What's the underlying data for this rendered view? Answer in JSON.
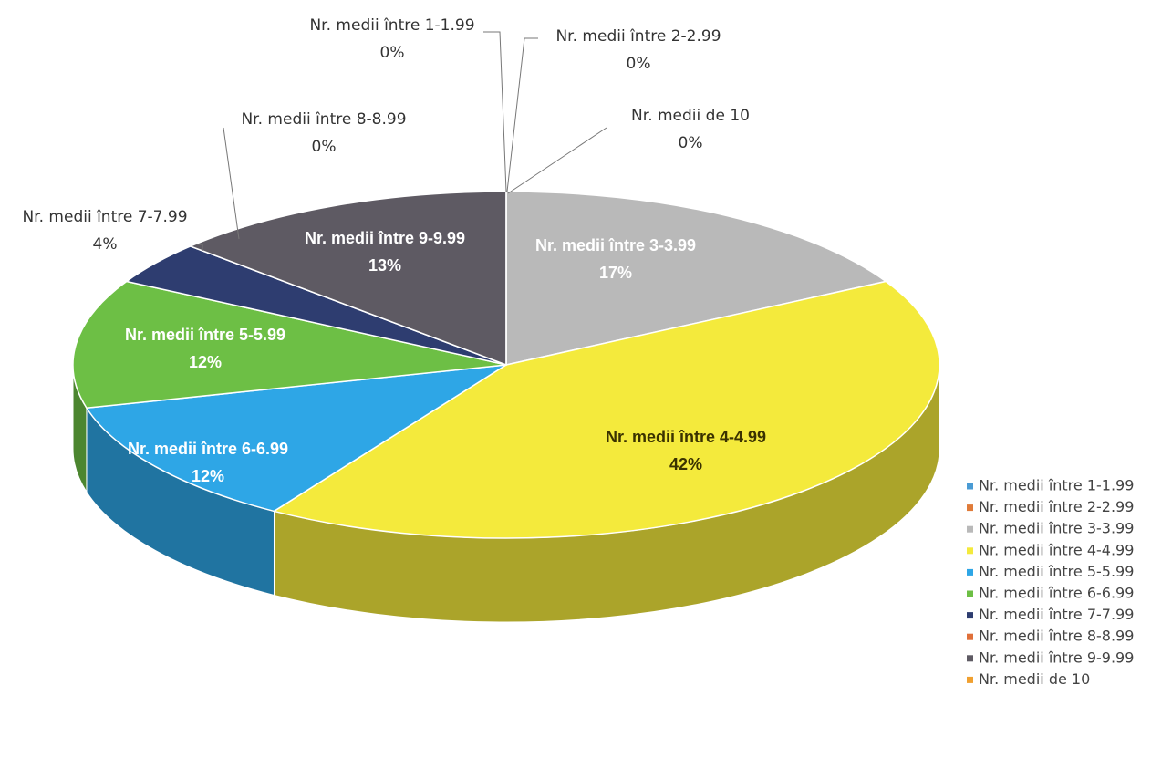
{
  "chart_data": {
    "type": "pie",
    "three_d": true,
    "categories": [
      "Nr. medii între 1-1.99",
      "Nr. medii între 2-2.99",
      "Nr. medii între 3-3.99",
      "Nr. medii între 4-4.99",
      "Nr. medii între 5-5.99",
      "Nr. medii între 6-6.99",
      "Nr. medii între 7-7.99",
      "Nr. medii între 8-8.99",
      "Nr. medii între 9-9.99",
      "Nr. medii de 10"
    ],
    "values": [
      0,
      0,
      17,
      42,
      12,
      12,
      4,
      0,
      13,
      0
    ],
    "value_labels": [
      "0%",
      "0%",
      "17%",
      "42%",
      "12%",
      "12%",
      "4%",
      "0%",
      "13%",
      "0%"
    ],
    "colors": [
      "#4a9bd4",
      "#e07b39",
      "#b9b9b9",
      "#f4ea3c",
      "#2ea6e6",
      "#6dbf45",
      "#2e3d70",
      "#e0703a",
      "#5e5a63",
      "#f0a030"
    ],
    "legend": "bottom-right"
  }
}
